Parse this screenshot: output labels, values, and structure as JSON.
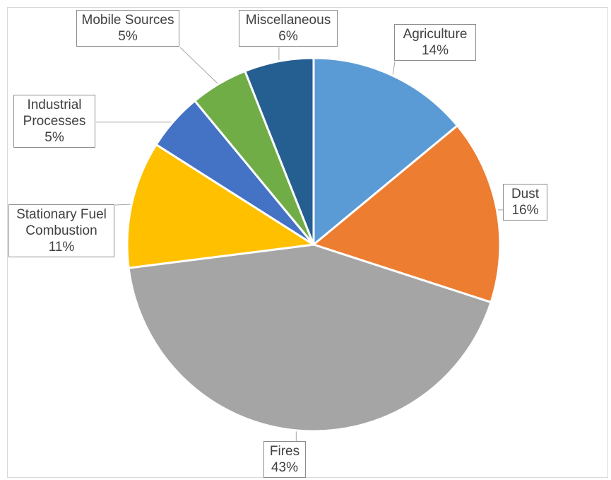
{
  "chart_data": {
    "type": "pie",
    "categories": [
      "Agriculture",
      "Dust",
      "Fires",
      "Stationary Fuel Combustion",
      "Industrial Processes",
      "Mobile Sources",
      "Miscellaneous"
    ],
    "values": [
      14,
      16,
      43,
      11,
      5,
      5,
      6
    ],
    "slice_labels": [
      {
        "category": "Agriculture",
        "percent": "14%"
      },
      {
        "category": "Dust",
        "percent": "16%"
      },
      {
        "category": "Fires",
        "percent": "43%"
      },
      {
        "category": "Stationary Fuel Combustion",
        "percent": "11%"
      },
      {
        "category": "Industrial Processes",
        "percent": "5%"
      },
      {
        "category": "Mobile Sources",
        "percent": "5%"
      },
      {
        "category": "Miscellaneous",
        "percent": "6%"
      }
    ],
    "colors": [
      "#5B9BD5",
      "#ED7D31",
      "#A5A5A5",
      "#FFC000",
      "#4472C4",
      "#70AD47",
      "#255E91"
    ],
    "start": "12 o'clock",
    "direction": "clockwise",
    "legend": "none",
    "label_style": "callouts with category name and percentage"
  }
}
